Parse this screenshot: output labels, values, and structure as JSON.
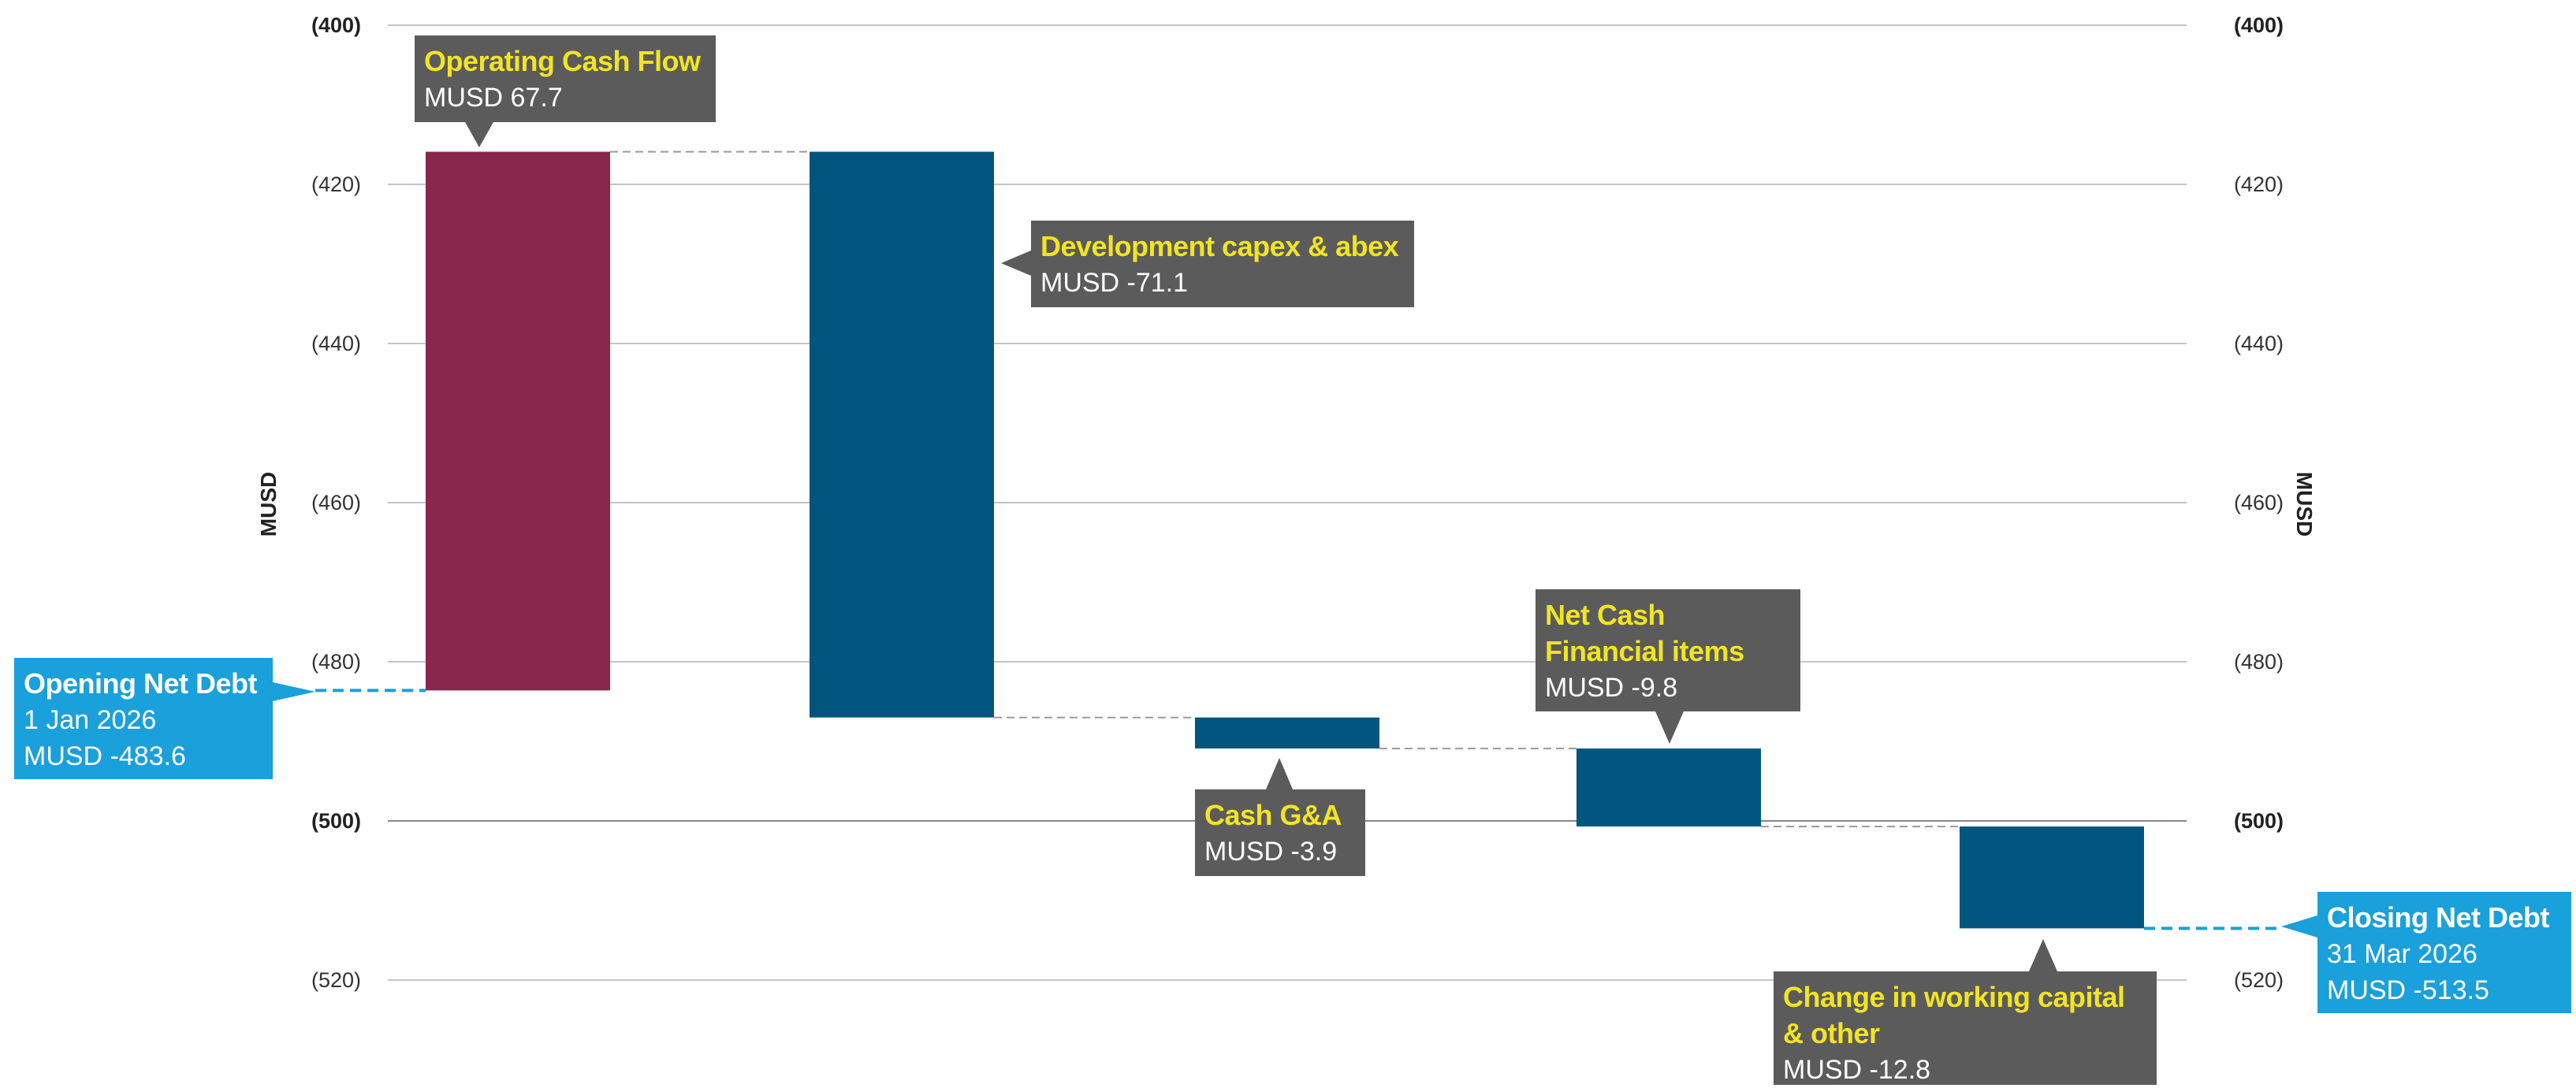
{
  "colors": {
    "positive": "#89264c",
    "negative": "#00567e",
    "grid": "#c4c4c4",
    "zero_grid": "#888888",
    "connector": "#9a9a9a",
    "endpoint_line": "#1aa0da",
    "callout_gray": "#5b5b5c",
    "callout_blue": "#1aa0da",
    "callout_title": "#f2e423"
  },
  "chart_data": {
    "type": "waterfall",
    "ylabel": "MUSD",
    "ylabel_right": "MUSD",
    "ylim": [
      -525,
      -400
    ],
    "y_ticks": [
      -400,
      -420,
      -440,
      -460,
      -480,
      -500,
      -520
    ],
    "y_tick_labels": [
      "(400)",
      "(420)",
      "(440)",
      "(460)",
      "(480)",
      "(500)",
      "(520)"
    ],
    "bold_ticks": [
      "(400)",
      "(500)"
    ],
    "grid": true,
    "opening": {
      "title": "Opening Net Debt",
      "date": "1 Jan 2026",
      "value_label": "MUSD -483.6",
      "value": -483.6
    },
    "steps": [
      {
        "title": "Operating Cash Flow",
        "value_label": "MUSD 67.7",
        "value": 67.7,
        "start": -483.6,
        "end": -415.9
      },
      {
        "title": "Development capex & abex",
        "value_label": "MUSD -71.1",
        "value": -71.1,
        "start": -415.9,
        "end": -487.0
      },
      {
        "title": "Cash G&A",
        "value_label": "MUSD -3.9",
        "value": -3.9,
        "start": -487.0,
        "end": -490.9
      },
      {
        "title": "Net Cash Financial items",
        "value_label": "MUSD -9.8",
        "value": -9.8,
        "start": -490.9,
        "end": -500.7
      },
      {
        "title": "Change in working capital & other",
        "value_label": "MUSD -12.8",
        "value": -12.8,
        "start": -500.7,
        "end": -513.5
      }
    ],
    "closing": {
      "title": "Closing Net Debt",
      "date": "31 Mar 2026",
      "value_label": "MUSD -513.5",
      "value": -513.5
    }
  }
}
